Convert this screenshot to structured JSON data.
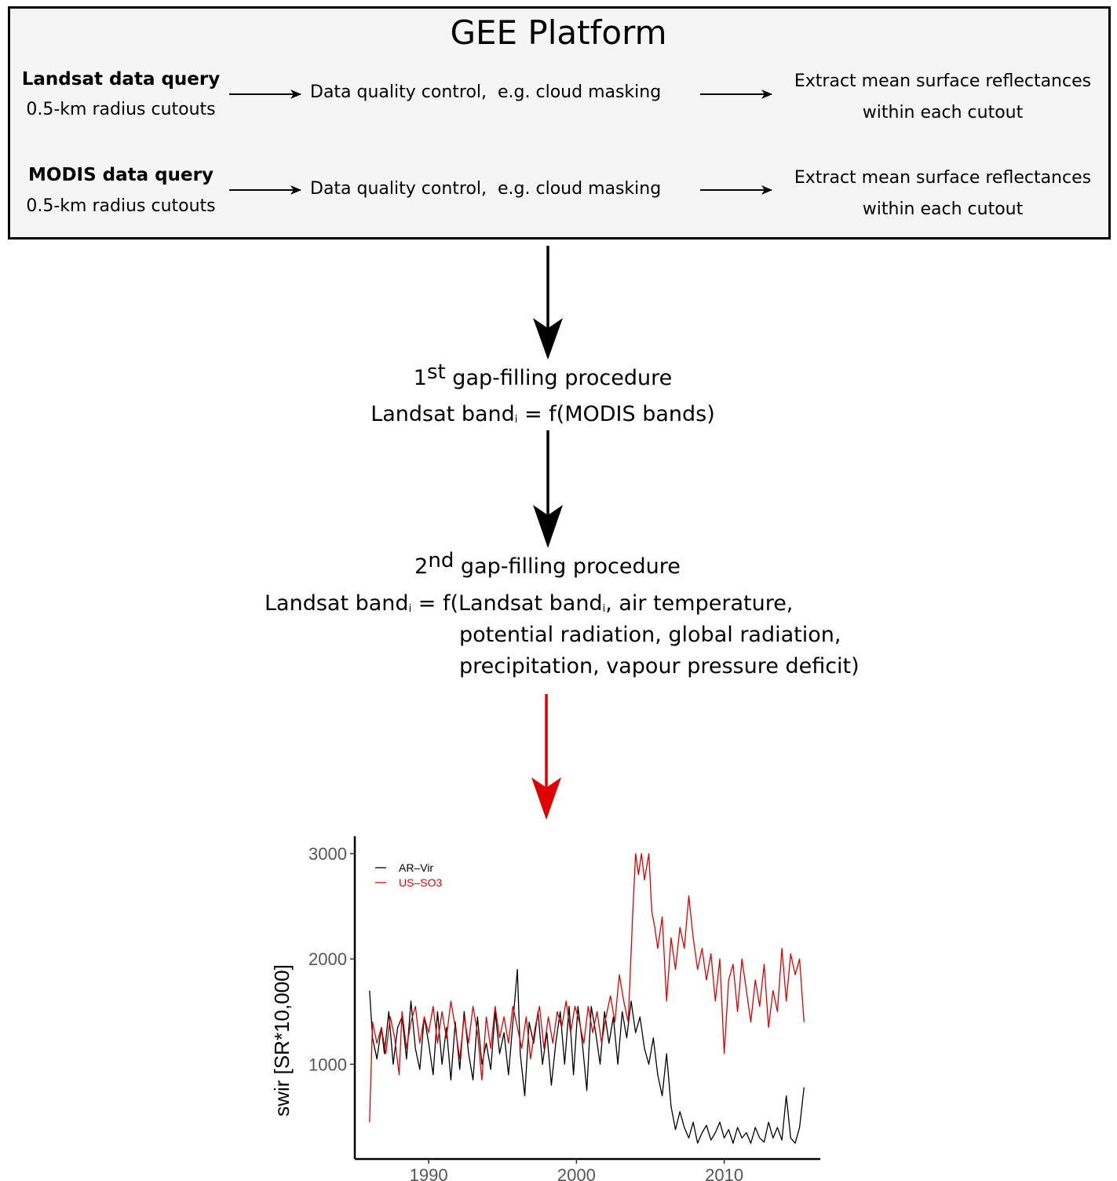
{
  "platform": {
    "title": "GEE Platform"
  },
  "rows": [
    {
      "source_title": "Landsat data query",
      "source_sub": "0.5-km radius cutouts",
      "qc": "Data quality control,  e.g. cloud masking",
      "extract_l1": "Extract mean surface reflectances",
      "extract_l2": "within each cutout"
    },
    {
      "source_title": "MODIS data query",
      "source_sub": "0.5-km radius cutouts",
      "qc": "Data quality control,  e.g. cloud masking",
      "extract_l1": "Extract mean surface reflectances",
      "extract_l2": "within each cutout"
    }
  ],
  "step1": {
    "ordinal": "1",
    "ordinal_sup": "st",
    "title_rest": " gap-filling procedure",
    "formula_pre": "Landsat band",
    "formula_sub": "i",
    "formula_post": " = f(MODIS bands)"
  },
  "step2": {
    "ordinal": "2",
    "ordinal_sup": "nd",
    "title_rest": " gap-filling procedure",
    "formula_pre": "Landsat band",
    "formula_sub": "i",
    "formula_mid": " = f(Landsat band",
    "formula_sub2": "i",
    "formula_post": ", air temperature,",
    "line2": "potential radiation, global radiation,",
    "line3": "precipitation, vapour pressure deficit)"
  },
  "colors": {
    "arrow": "#000000",
    "final_arrow": "#e00000",
    "series_red": "#e00000",
    "series_black": "#000000"
  },
  "chart_data": {
    "type": "line",
    "ylabel": "swir [SR*10,000]",
    "xlabel": "",
    "xlim": [
      1985,
      2016.5
    ],
    "ylim": [
      100,
      3150
    ],
    "x_ticks": [
      1990,
      2000,
      2010
    ],
    "y_ticks": [
      1000,
      2000,
      3000
    ],
    "grid": false,
    "legend_position": "top-left",
    "series": [
      {
        "name": "AR–Vir",
        "color": "#000000",
        "points": [
          [
            1986.0,
            1700
          ],
          [
            1986.2,
            1250
          ],
          [
            1986.5,
            1050
          ],
          [
            1986.8,
            1350
          ],
          [
            1987.0,
            1100
          ],
          [
            1987.3,
            1500
          ],
          [
            1987.6,
            1000
          ],
          [
            1987.9,
            1350
          ],
          [
            1988.2,
            1450
          ],
          [
            1988.5,
            1050
          ],
          [
            1988.8,
            1600
          ],
          [
            1989.1,
            1150
          ],
          [
            1989.4,
            950
          ],
          [
            1989.7,
            1450
          ],
          [
            1990.0,
            1200
          ],
          [
            1990.3,
            900
          ],
          [
            1990.6,
            1500
          ],
          [
            1990.9,
            1000
          ],
          [
            1991.2,
            1350
          ],
          [
            1991.5,
            850
          ],
          [
            1991.8,
            1400
          ],
          [
            1992.1,
            950
          ],
          [
            1992.4,
            1500
          ],
          [
            1992.7,
            1100
          ],
          [
            1993.0,
            850
          ],
          [
            1993.3,
            1450
          ],
          [
            1993.6,
            1000
          ],
          [
            1993.9,
            1200
          ],
          [
            1994.2,
            950
          ],
          [
            1994.5,
            1500
          ],
          [
            1994.8,
            1100
          ],
          [
            1995.1,
            1300
          ],
          [
            1995.4,
            900
          ],
          [
            1995.7,
            1400
          ],
          [
            1996.0,
            1900
          ],
          [
            1996.2,
            1100
          ],
          [
            1996.5,
            700
          ],
          [
            1996.8,
            1400
          ],
          [
            1997.1,
            1200
          ],
          [
            1997.4,
            1500
          ],
          [
            1997.7,
            1000
          ],
          [
            1998.0,
            1300
          ],
          [
            1998.3,
            800
          ],
          [
            1998.6,
            1200
          ],
          [
            1998.9,
            1500
          ],
          [
            1999.2,
            1000
          ],
          [
            1999.5,
            1550
          ],
          [
            1999.8,
            900
          ],
          [
            2000.1,
            1550
          ],
          [
            2000.4,
            1200
          ],
          [
            2000.7,
            750
          ],
          [
            2001.0,
            1550
          ],
          [
            2001.3,
            1300
          ],
          [
            2001.6,
            1000
          ],
          [
            2001.9,
            1500
          ],
          [
            2002.2,
            1200
          ],
          [
            2002.5,
            1450
          ],
          [
            2002.8,
            1000
          ],
          [
            2003.1,
            1500
          ],
          [
            2003.4,
            1250
          ],
          [
            2003.7,
            1600
          ],
          [
            2004.0,
            1300
          ],
          [
            2004.3,
            1450
          ],
          [
            2004.6,
            1150
          ],
          [
            2004.9,
            1000
          ],
          [
            2005.2,
            1250
          ],
          [
            2005.5,
            900
          ],
          [
            2005.8,
            700
          ],
          [
            2006.1,
            1100
          ],
          [
            2006.4,
            600
          ],
          [
            2006.7,
            380
          ],
          [
            2007.0,
            550
          ],
          [
            2007.3,
            400
          ],
          [
            2007.6,
            300
          ],
          [
            2007.9,
            450
          ],
          [
            2008.2,
            250
          ],
          [
            2008.5,
            350
          ],
          [
            2008.8,
            420
          ],
          [
            2009.1,
            280
          ],
          [
            2009.4,
            350
          ],
          [
            2009.7,
            450
          ],
          [
            2010.0,
            300
          ],
          [
            2010.3,
            380
          ],
          [
            2010.6,
            250
          ],
          [
            2010.9,
            400
          ],
          [
            2011.2,
            300
          ],
          [
            2011.5,
            350
          ],
          [
            2011.8,
            250
          ],
          [
            2012.1,
            400
          ],
          [
            2012.4,
            300
          ],
          [
            2012.7,
            260
          ],
          [
            2013.0,
            450
          ],
          [
            2013.3,
            300
          ],
          [
            2013.6,
            400
          ],
          [
            2013.9,
            280
          ],
          [
            2014.2,
            700
          ],
          [
            2014.5,
            300
          ],
          [
            2014.8,
            250
          ],
          [
            2015.1,
            400
          ],
          [
            2015.4,
            780
          ]
        ]
      },
      {
        "name": "US–SO3",
        "color": "#e00000",
        "points": [
          [
            1986.0,
            450
          ],
          [
            1986.2,
            1400
          ],
          [
            1986.5,
            1200
          ],
          [
            1986.8,
            1350
          ],
          [
            1987.1,
            1100
          ],
          [
            1987.4,
            1450
          ],
          [
            1987.7,
            1250
          ],
          [
            1988.0,
            900
          ],
          [
            1988.2,
            1500
          ],
          [
            1988.5,
            1150
          ],
          [
            1988.8,
            1400
          ],
          [
            1989.1,
            1550
          ],
          [
            1989.4,
            1200
          ],
          [
            1989.7,
            1450
          ],
          [
            1990.0,
            1300
          ],
          [
            1990.3,
            1550
          ],
          [
            1990.6,
            1200
          ],
          [
            1990.9,
            1500
          ],
          [
            1991.2,
            1250
          ],
          [
            1991.5,
            1600
          ],
          [
            1991.8,
            1350
          ],
          [
            1992.1,
            1050
          ],
          [
            1992.4,
            1450
          ],
          [
            1992.7,
            1200
          ],
          [
            1993.0,
            1550
          ],
          [
            1993.3,
            1300
          ],
          [
            1993.6,
            850
          ],
          [
            1993.9,
            1450
          ],
          [
            1994.2,
            1150
          ],
          [
            1994.5,
            1550
          ],
          [
            1994.8,
            1250
          ],
          [
            1995.1,
            1450
          ],
          [
            1995.4,
            1200
          ],
          [
            1995.7,
            1550
          ],
          [
            1996.0,
            1350
          ],
          [
            1996.3,
            1150
          ],
          [
            1996.6,
            1450
          ],
          [
            1996.9,
            1050
          ],
          [
            1997.2,
            1350
          ],
          [
            1997.5,
            1550
          ],
          [
            1997.8,
            1150
          ],
          [
            1998.1,
            1450
          ],
          [
            1998.4,
            1200
          ],
          [
            1998.7,
            1500
          ],
          [
            1999.0,
            1350
          ],
          [
            1999.3,
            1600
          ],
          [
            1999.6,
            1300
          ],
          [
            1999.9,
            1550
          ],
          [
            2000.2,
            1400
          ],
          [
            2000.5,
            1200
          ],
          [
            2000.8,
            1550
          ],
          [
            2001.1,
            1300
          ],
          [
            2001.4,
            1500
          ],
          [
            2001.7,
            1200
          ],
          [
            2002.0,
            1450
          ],
          [
            2002.3,
            1650
          ],
          [
            2002.6,
            1400
          ],
          [
            2002.9,
            1850
          ],
          [
            2003.2,
            1600
          ],
          [
            2003.5,
            1400
          ],
          [
            2003.8,
            2400
          ],
          [
            2004.0,
            3000
          ],
          [
            2004.2,
            2800
          ],
          [
            2004.4,
            3000
          ],
          [
            2004.6,
            2750
          ],
          [
            2004.9,
            3000
          ],
          [
            2005.1,
            2450
          ],
          [
            2005.3,
            2300
          ],
          [
            2005.5,
            2100
          ],
          [
            2005.8,
            2400
          ],
          [
            2006.1,
            1600
          ],
          [
            2006.4,
            2200
          ],
          [
            2006.7,
            1900
          ],
          [
            2007.0,
            2300
          ],
          [
            2007.3,
            2100
          ],
          [
            2007.6,
            2600
          ],
          [
            2007.9,
            2200
          ],
          [
            2008.2,
            1900
          ],
          [
            2008.5,
            2100
          ],
          [
            2008.8,
            1800
          ],
          [
            2009.1,
            2050
          ],
          [
            2009.4,
            1600
          ],
          [
            2009.7,
            2000
          ],
          [
            2010.0,
            1100
          ],
          [
            2010.3,
            1800
          ],
          [
            2010.6,
            1950
          ],
          [
            2010.9,
            1500
          ],
          [
            2011.2,
            2000
          ],
          [
            2011.5,
            1700
          ],
          [
            2011.8,
            1400
          ],
          [
            2012.1,
            1800
          ],
          [
            2012.4,
            1550
          ],
          [
            2012.7,
            1950
          ],
          [
            2013.0,
            1350
          ],
          [
            2013.3,
            1700
          ],
          [
            2013.6,
            1500
          ],
          [
            2013.9,
            2100
          ],
          [
            2014.2,
            1600
          ],
          [
            2014.5,
            2050
          ],
          [
            2014.8,
            1850
          ],
          [
            2015.1,
            2000
          ],
          [
            2015.4,
            1400
          ]
        ]
      }
    ]
  }
}
